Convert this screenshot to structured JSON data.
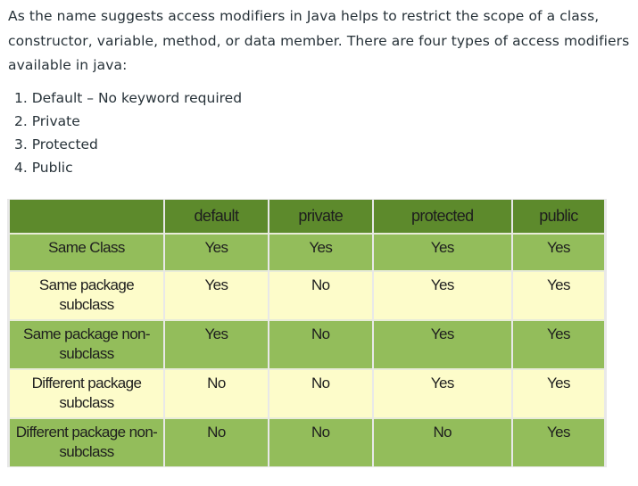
{
  "intro": "As the name suggests access modifiers in Java helps to restrict the scope of a class, constructor, variable, method, or data member. There are four types of access modifiers available in java:",
  "modifiers": [
    "1. Default – No keyword required",
    "2. Private",
    "3. Protected",
    "4. Public"
  ],
  "table": {
    "headers": [
      "",
      "default",
      "private",
      "protected",
      "public"
    ],
    "rows": [
      {
        "label": "Same Class",
        "cells": [
          "Yes",
          "Yes",
          "Yes",
          "Yes"
        ]
      },
      {
        "label": "Same package subclass",
        "cells": [
          "Yes",
          "No",
          "Yes",
          "Yes"
        ]
      },
      {
        "label": "Same package non-subclass",
        "cells": [
          "Yes",
          "No",
          "Yes",
          "Yes"
        ]
      },
      {
        "label": "Different package subclass",
        "cells": [
          "No",
          "No",
          "Yes",
          "Yes"
        ]
      },
      {
        "label": "Different package non-subclass",
        "cells": [
          "No",
          "No",
          "No",
          "Yes"
        ]
      }
    ]
  },
  "colors": {
    "header": "#5d8a2c",
    "row_dark": "#93bd5b",
    "row_light": "#fdfcca",
    "text": "#273239"
  }
}
